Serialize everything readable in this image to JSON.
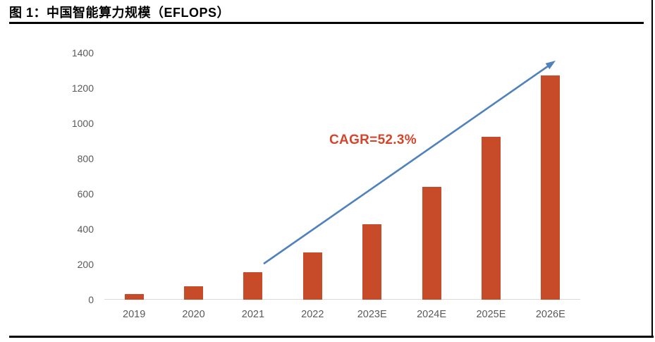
{
  "figure": {
    "title": "图 1：中国智能算力规模（EFLOPS）"
  },
  "chart_data": {
    "type": "bar",
    "title": "中国智能算力规模（EFLOPS）",
    "categories": [
      "2019",
      "2020",
      "2021",
      "2022",
      "2023E",
      "2024E",
      "2025E",
      "2026E"
    ],
    "values": [
      32,
      75,
      155,
      268,
      427,
      640,
      923,
      1271
    ],
    "xlabel": "",
    "ylabel": "",
    "ylim": [
      0,
      1400
    ],
    "y_ticks": [
      0,
      200,
      400,
      600,
      800,
      1000,
      1200,
      1400
    ],
    "grid": false,
    "legend": false,
    "annotation": {
      "text": "CAGR=52.3%"
    },
    "colors": {
      "bar": "#c74b28",
      "annotation_text": "#d5452b",
      "trend_arrow": "#4f81bd",
      "axis_label": "#595959",
      "axis_line": "#d9d9d9"
    }
  }
}
